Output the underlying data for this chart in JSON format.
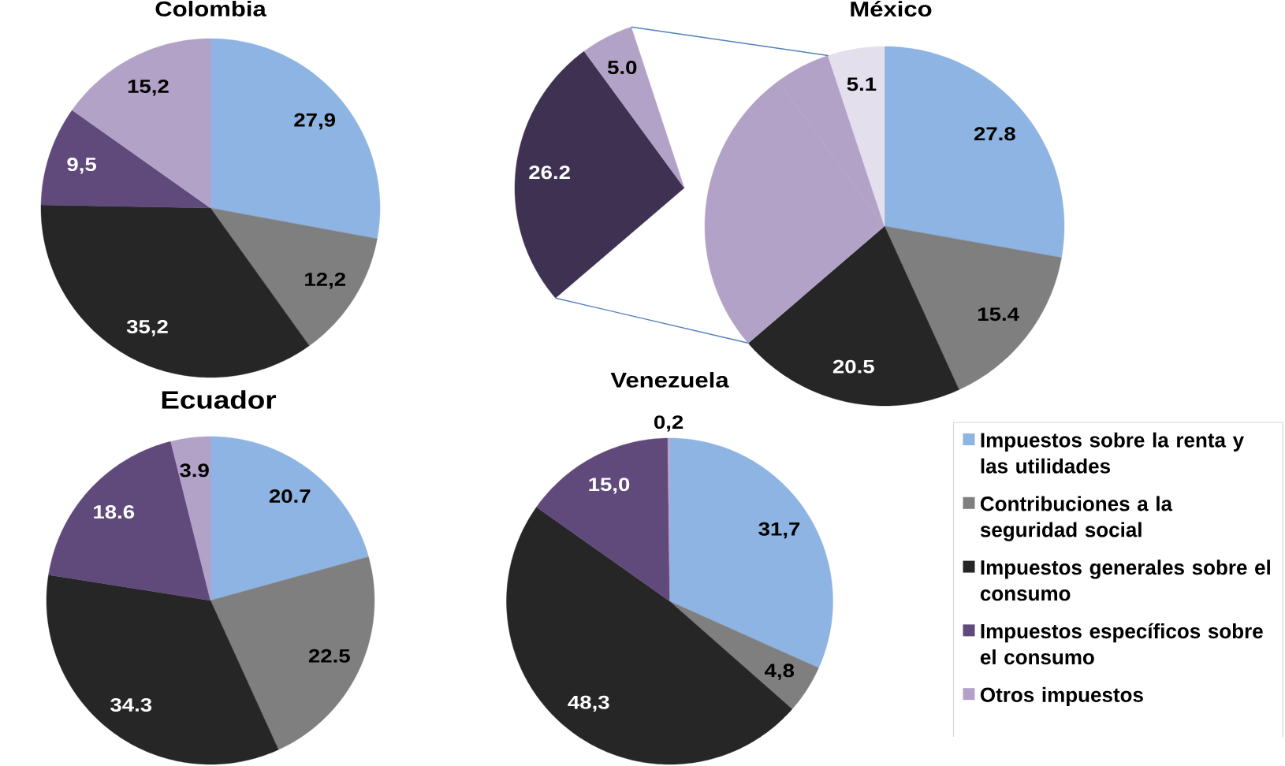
{
  "chart_data": [
    {
      "type": "pie",
      "title": "Colombia",
      "categories": [
        null,
        null,
        null,
        null,
        null
      ],
      "values": [
        27.9,
        12.2,
        35.2,
        9.5,
        15.2
      ],
      "colors": [
        "#8db4e2",
        "#7f7f7f",
        "#262626",
        "#604a7b",
        "#b3a2c7"
      ],
      "value_labels": [
        "27,9",
        "12,2",
        "35,2",
        "9,5",
        "15,2"
      ]
    },
    {
      "type": "pie",
      "title": "México",
      "categories": [
        null,
        null,
        null,
        null,
        null,
        null
      ],
      "values": [
        27.8,
        15.4,
        20.5,
        26.2,
        5.0,
        5.1
      ],
      "colors": [
        "#8db4e2",
        "#7f7f7f",
        "#262626",
        "#b3a2c7",
        "#b3a2c7",
        "#e4dfec"
      ],
      "value_labels": [
        "27.8",
        "15.4",
        "20.5",
        null,
        null,
        "5.1"
      ]
    },
    {
      "type": "pie",
      "categories": [
        null,
        null
      ],
      "values": [
        26.2,
        5.0
      ],
      "colors": [
        "#3f3151",
        "#b3a2c7"
      ],
      "value_labels": [
        "26.2",
        "5.0"
      ]
    },
    {
      "type": "pie",
      "title": "Ecuador",
      "categories": [
        null,
        null,
        null,
        null,
        null
      ],
      "values": [
        20.7,
        22.5,
        34.3,
        18.6,
        3.9
      ],
      "colors": [
        "#8db4e2",
        "#7f7f7f",
        "#262626",
        "#604a7b",
        "#b3a2c7"
      ],
      "value_labels": [
        "20.7",
        "22.5",
        "34.3",
        "18.6",
        "3.9"
      ]
    },
    {
      "type": "pie",
      "title": "Venezuela",
      "categories": [
        "Impuestos sobre la renta y las utilidades",
        "Contribuciones a la seguridad social",
        "Impuestos generales sobre el consumo",
        "Impuestos específicos sobre el consumo",
        "Otros impuestos"
      ],
      "values": [
        31.7,
        4.8,
        48.3,
        15.0,
        0.2
      ],
      "colors": [
        "#8db4e2",
        "#7f7f7f",
        "#262626",
        "#604a7b",
        "#b3a2c7"
      ],
      "value_labels": [
        "31,7",
        "4,8",
        "48,3",
        "15,0",
        "0,2"
      ],
      "legend": "right"
    }
  ]
}
